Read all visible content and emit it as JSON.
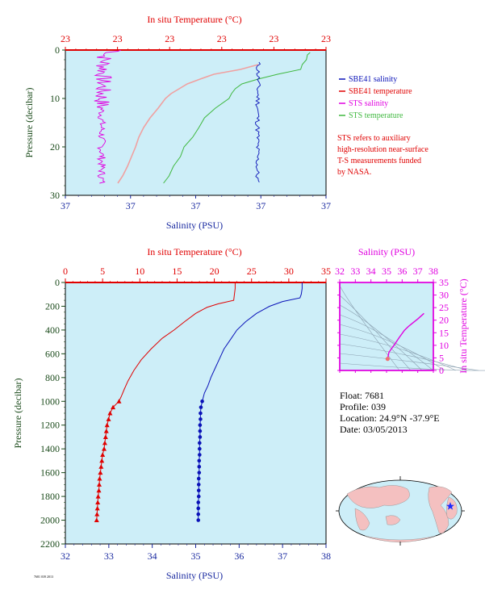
{
  "colors": {
    "plot_bg": "#cdeef8",
    "red": "#e00000",
    "blue": "#0a12b8",
    "magenta": "#e000e0",
    "green": "#3fb83f",
    "pink": "#f0a0a0",
    "lightgreen": "#88cc88",
    "darkgreen": "#1a4a1a",
    "navy": "#1a2aa0",
    "land": "#f4c0c0",
    "ocean": "#cdeef8"
  },
  "chart_data": [
    {
      "type": "line",
      "name": "top-panel",
      "top_axis": {
        "label": "In situ Temperature (°C)",
        "ticks": [
          "23",
          "23",
          "23",
          "23",
          "23",
          "23"
        ]
      },
      "bottom_axis": {
        "label": "Salinity (PSU)",
        "ticks": [
          "37",
          "37",
          "37",
          "37",
          "37"
        ]
      },
      "left_axis": {
        "label": "Pressure (decibar)",
        "ticks": [
          "0",
          "10",
          "20",
          "30"
        ],
        "ylim": [
          0,
          30
        ]
      },
      "legend": [
        {
          "label": "SBE41 salinity",
          "color": "#0a12b8"
        },
        {
          "label": "SBE41 temperature",
          "color": "#e00000"
        },
        {
          "label": "STS salinity",
          "color": "#e000e0"
        },
        {
          "label": "STS temperature",
          "color": "#3fb83f"
        }
      ],
      "note": [
        "STS refers to auxiliary",
        "high-resolution near-surface",
        "T-S measurements funded",
        "by NASA."
      ],
      "series_pressure_axis": "decibar"
    },
    {
      "type": "line",
      "name": "main-profile",
      "top_axis": {
        "label": "In situ Temperature (°C)",
        "ticks": [
          "0",
          "5",
          "10",
          "15",
          "20",
          "25",
          "30",
          "35"
        ],
        "xlim": [
          0,
          35
        ]
      },
      "bottom_axis": {
        "label": "Salinity (PSU)",
        "ticks": [
          "32",
          "33",
          "34",
          "35",
          "36",
          "37",
          "38"
        ],
        "xlim": [
          32,
          38
        ]
      },
      "left_axis": {
        "label": "Pressure (decibar)",
        "ticks": [
          "0",
          "200",
          "400",
          "600",
          "800",
          "1000",
          "1200",
          "1400",
          "1600",
          "1800",
          "2000",
          "2200"
        ],
        "ylim": [
          0,
          2200
        ]
      },
      "series": [
        {
          "name": "temperature",
          "color": "#e00000",
          "pressure": [
            0,
            50,
            100,
            150,
            180,
            210,
            260,
            330,
            400,
            470,
            560,
            650,
            740,
            830,
            900,
            960,
            1000
          ],
          "values": [
            22.8,
            22.8,
            22.7,
            22.6,
            20.5,
            19.0,
            17.5,
            16.0,
            14.6,
            13.0,
            11.5,
            10.2,
            9.2,
            8.4,
            7.9,
            7.5,
            7.2
          ]
        },
        {
          "name": "temperature-samples",
          "color": "#e00000",
          "pressure": [
            1000,
            1050,
            1100,
            1150,
            1200,
            1250,
            1300,
            1350,
            1400,
            1450,
            1500,
            1550,
            1600,
            1650,
            1700,
            1750,
            1800,
            1850,
            1900,
            1950,
            2000
          ],
          "values": [
            7.2,
            6.4,
            6.0,
            5.8,
            5.6,
            5.5,
            5.4,
            5.3,
            5.2,
            5.0,
            4.9,
            4.8,
            4.7,
            4.6,
            4.55,
            4.5,
            4.4,
            4.35,
            4.3,
            4.25,
            4.2
          ]
        },
        {
          "name": "salinity",
          "color": "#0a12b8",
          "pressure": [
            0,
            50,
            100,
            130,
            160,
            200,
            260,
            330,
            400,
            480,
            560,
            640,
            720,
            800,
            870,
            930,
            1000
          ],
          "values": [
            37.45,
            37.45,
            37.43,
            37.4,
            37.0,
            36.7,
            36.4,
            36.15,
            35.95,
            35.8,
            35.65,
            35.55,
            35.45,
            35.35,
            35.28,
            35.2,
            35.15
          ]
        },
        {
          "name": "salinity-samples",
          "color": "#0a12b8",
          "pressure": [
            1000,
            1050,
            1100,
            1150,
            1200,
            1250,
            1300,
            1350,
            1400,
            1450,
            1500,
            1550,
            1600,
            1650,
            1700,
            1750,
            1800,
            1850,
            1900,
            1950,
            2000
          ],
          "values": [
            35.15,
            35.12,
            35.11,
            35.11,
            35.1,
            35.1,
            35.1,
            35.09,
            35.09,
            35.09,
            35.08,
            35.08,
            35.08,
            35.07,
            35.07,
            35.07,
            35.07,
            35.06,
            35.06,
            35.06,
            35.06
          ]
        }
      ]
    },
    {
      "type": "scatter",
      "name": "ts-diagram",
      "top_axis": {
        "label": "Salinity (PSU)",
        "ticks": [
          "32",
          "33",
          "34",
          "35",
          "36",
          "37",
          "38"
        ],
        "xlim": [
          32,
          38
        ]
      },
      "right_axis": {
        "label": "In situ Temperature (°C)",
        "ticks": [
          "0",
          "5",
          "10",
          "15",
          "20",
          "25",
          "30",
          "35"
        ],
        "ylim": [
          0,
          35
        ]
      },
      "series": [
        {
          "name": "ts-curve",
          "color": "#e000e0",
          "salinity": [
            35.06,
            35.08,
            35.1,
            35.15,
            35.3,
            35.5,
            35.8,
            36.15,
            36.4,
            36.7,
            37.0,
            37.4
          ],
          "temperature": [
            4.2,
            4.7,
            5.5,
            7.2,
            8.5,
            10.2,
            13.0,
            16.0,
            17.5,
            19.0,
            20.5,
            22.7
          ]
        }
      ]
    }
  ],
  "info": {
    "float": "Float: 7681",
    "profile": "Profile: 039",
    "location": "Location: 24.9°N -37.9°E",
    "date": "Date: 03/05/2013"
  },
  "footer_small": "7681 039 2013"
}
